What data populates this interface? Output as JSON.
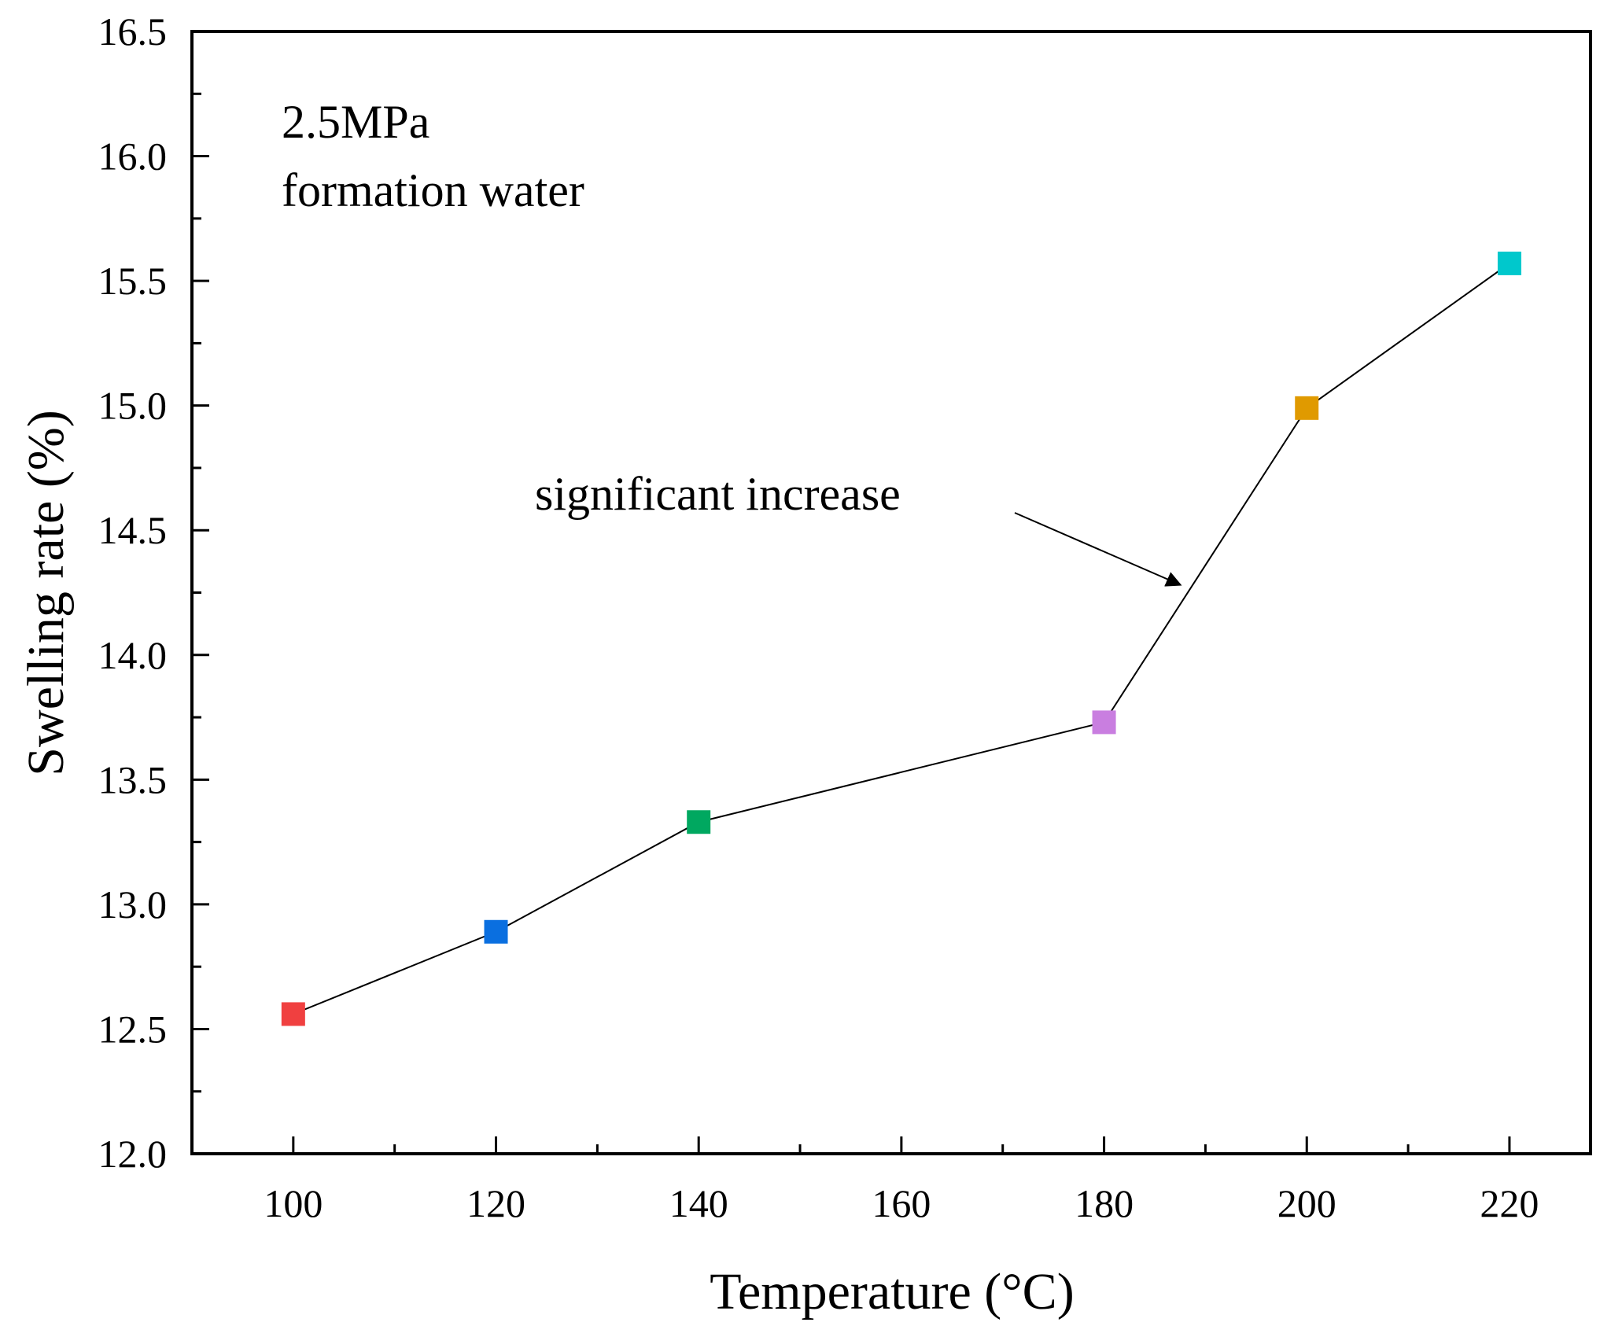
{
  "chart_data": {
    "type": "line",
    "xlabel": "Temperature (°C)",
    "ylabel": "Swelling rate (%)",
    "xlim": [
      90,
      228
    ],
    "ylim": [
      12.0,
      16.5
    ],
    "x_ticks": [
      100,
      120,
      140,
      160,
      180,
      200,
      220
    ],
    "x_tick_labels": [
      "100",
      "120",
      "140",
      "160",
      "180",
      "200",
      "220"
    ],
    "x_minor_ticks": [
      110,
      130,
      150,
      170,
      190,
      210
    ],
    "y_ticks": [
      12.0,
      12.5,
      13.0,
      13.5,
      14.0,
      14.5,
      15.0,
      15.5,
      16.0,
      16.5
    ],
    "y_tick_labels": [
      "12.0",
      "12.5",
      "13.0",
      "13.5",
      "14.0",
      "14.5",
      "15.0",
      "15.5",
      "16.0",
      "16.5"
    ],
    "y_minor_ticks": [
      12.25,
      12.75,
      13.25,
      13.75,
      14.25,
      14.75,
      15.25,
      15.75,
      16.25
    ],
    "series": [
      {
        "name": "Swelling rate",
        "line_color": "#000000",
        "points": [
          {
            "x": 100,
            "y": 12.56,
            "color": "#f04040"
          },
          {
            "x": 120,
            "y": 12.89,
            "color": "#0a6fe0"
          },
          {
            "x": 140,
            "y": 13.33,
            "color": "#00a860"
          },
          {
            "x": 180,
            "y": 13.73,
            "color": "#c97ee0"
          },
          {
            "x": 200,
            "y": 14.99,
            "color": "#e09a00"
          },
          {
            "x": 220,
            "y": 15.57,
            "color": "#00c8cc"
          }
        ]
      }
    ],
    "annotations": {
      "condition_line1": "2.5MPa",
      "condition_line2": "formation water",
      "arrow_label": "significant increase",
      "arrow_target": {
        "x": 188,
        "y": 14.3
      }
    }
  }
}
